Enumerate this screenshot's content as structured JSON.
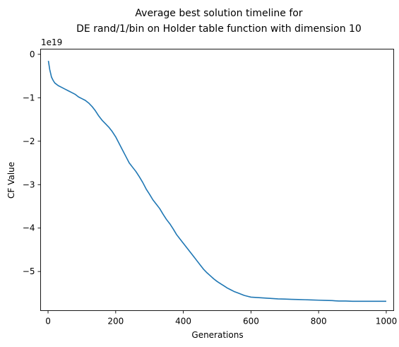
{
  "chart_data": {
    "type": "line",
    "title": "Average best solution timeline for\nDE rand/1/bin on Holder table function with dimension 10",
    "xlabel": "Generations",
    "ylabel": "CF Value",
    "y_offset_label": "1e19",
    "xlim": [
      -22,
      1022
    ],
    "ylim": [
      -5.9,
      0.12
    ],
    "y_scale_factor": 1e+19,
    "xticks": [
      0,
      200,
      400,
      600,
      800,
      1000
    ],
    "xtick_labels": [
      "0",
      "200",
      "400",
      "600",
      "800",
      "1000"
    ],
    "yticks": [
      0,
      -1,
      -2,
      -3,
      -4,
      -5
    ],
    "ytick_labels": [
      "0",
      "−1",
      "−2",
      "−3",
      "−4",
      "−5"
    ],
    "grid": false,
    "series": [
      {
        "color": "#1f77b4",
        "x": [
          1,
          3,
          5,
          8,
          10,
          15,
          20,
          30,
          40,
          50,
          60,
          70,
          80,
          90,
          100,
          110,
          120,
          130,
          140,
          150,
          160,
          170,
          180,
          190,
          200,
          210,
          220,
          230,
          240,
          250,
          260,
          270,
          280,
          290,
          300,
          310,
          320,
          330,
          340,
          350,
          360,
          370,
          380,
          390,
          400,
          410,
          420,
          430,
          440,
          450,
          460,
          470,
          480,
          490,
          500,
          510,
          520,
          530,
          540,
          550,
          560,
          570,
          580,
          590,
          600,
          620,
          640,
          660,
          680,
          700,
          720,
          740,
          760,
          780,
          800,
          820,
          840,
          850,
          860,
          880,
          900,
          950,
          1000
        ],
        "y": [
          -0.15,
          -0.25,
          -0.35,
          -0.45,
          -0.52,
          -0.6,
          -0.66,
          -0.72,
          -0.76,
          -0.8,
          -0.84,
          -0.88,
          -0.92,
          -0.98,
          -1.02,
          -1.06,
          -1.12,
          -1.2,
          -1.3,
          -1.42,
          -1.52,
          -1.6,
          -1.68,
          -1.78,
          -1.9,
          -2.05,
          -2.2,
          -2.35,
          -2.5,
          -2.6,
          -2.7,
          -2.82,
          -2.95,
          -3.1,
          -3.22,
          -3.35,
          -3.45,
          -3.55,
          -3.68,
          -3.8,
          -3.9,
          -4.02,
          -4.15,
          -4.25,
          -4.35,
          -4.45,
          -4.55,
          -4.65,
          -4.75,
          -4.85,
          -4.95,
          -5.03,
          -5.1,
          -5.17,
          -5.23,
          -5.28,
          -5.33,
          -5.38,
          -5.42,
          -5.46,
          -5.49,
          -5.52,
          -5.55,
          -5.57,
          -5.59,
          -5.6,
          -5.61,
          -5.62,
          -5.63,
          -5.635,
          -5.64,
          -5.645,
          -5.65,
          -5.655,
          -5.66,
          -5.665,
          -5.67,
          -5.675,
          -5.68,
          -5.68,
          -5.685,
          -5.685,
          -5.685
        ]
      }
    ]
  }
}
